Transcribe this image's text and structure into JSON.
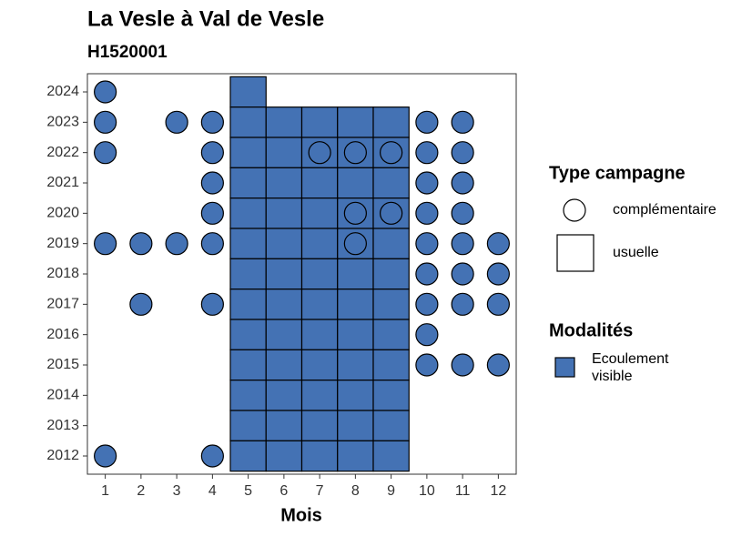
{
  "chart_data": {
    "type": "scatter",
    "title": "La Vesle à Val de Vesle",
    "subtitle": "H1520001",
    "xlabel": "Mois",
    "xlim": [
      0.5,
      12.5
    ],
    "ylim": [
      2011.4,
      2024.6
    ],
    "xticks": [
      1,
      2,
      3,
      4,
      5,
      6,
      7,
      8,
      9,
      10,
      11,
      12
    ],
    "yticks": [
      2012,
      2013,
      2014,
      2015,
      2016,
      2017,
      2018,
      2019,
      2020,
      2021,
      2022,
      2023,
      2024
    ],
    "shape_legend_title": "Type campagne",
    "fill_legend_title": "Modalités",
    "modality": {
      "name": "Ecoulement visible",
      "color": "#4472b4"
    },
    "series": [
      {
        "name": "complémentaire",
        "shape": "circle",
        "x": [
          1,
          1,
          3,
          4,
          10,
          11,
          1,
          4,
          7,
          8,
          9,
          10,
          11,
          4,
          10,
          11,
          4,
          8,
          9,
          10,
          11,
          1,
          2,
          3,
          4,
          8,
          10,
          11,
          12,
          10,
          11,
          12,
          2,
          4,
          10,
          11,
          12,
          10,
          10,
          11,
          12,
          1,
          4
        ],
        "y": [
          2024,
          2023,
          2023,
          2023,
          2023,
          2023,
          2022,
          2022,
          2022,
          2022,
          2022,
          2022,
          2022,
          2021,
          2021,
          2021,
          2020,
          2020,
          2020,
          2020,
          2020,
          2019,
          2019,
          2019,
          2019,
          2019,
          2019,
          2019,
          2019,
          2018,
          2018,
          2018,
          2017,
          2017,
          2017,
          2017,
          2017,
          2016,
          2015,
          2015,
          2015,
          2012,
          2012
        ]
      },
      {
        "name": "usuelle",
        "shape": "square",
        "x": [
          5,
          5,
          6,
          7,
          8,
          9,
          5,
          6,
          7,
          8,
          9,
          5,
          6,
          7,
          8,
          9,
          5,
          6,
          7,
          8,
          9,
          5,
          6,
          7,
          8,
          9,
          5,
          6,
          7,
          8,
          9,
          5,
          6,
          7,
          8,
          9,
          5,
          6,
          7,
          8,
          9,
          5,
          6,
          7,
          8,
          9,
          5,
          6,
          7,
          8,
          9,
          5,
          6,
          7,
          8,
          9,
          5,
          6,
          7,
          8,
          9
        ],
        "y": [
          2024,
          2023,
          2023,
          2023,
          2023,
          2023,
          2022,
          2022,
          2022,
          2022,
          2022,
          2021,
          2021,
          2021,
          2021,
          2021,
          2020,
          2020,
          2020,
          2020,
          2020,
          2019,
          2019,
          2019,
          2019,
          2019,
          2018,
          2018,
          2018,
          2018,
          2018,
          2017,
          2017,
          2017,
          2017,
          2017,
          2016,
          2016,
          2016,
          2016,
          2016,
          2015,
          2015,
          2015,
          2015,
          2015,
          2014,
          2014,
          2014,
          2014,
          2014,
          2013,
          2013,
          2013,
          2013,
          2013,
          2012,
          2012,
          2012,
          2012,
          2012
        ]
      }
    ]
  }
}
